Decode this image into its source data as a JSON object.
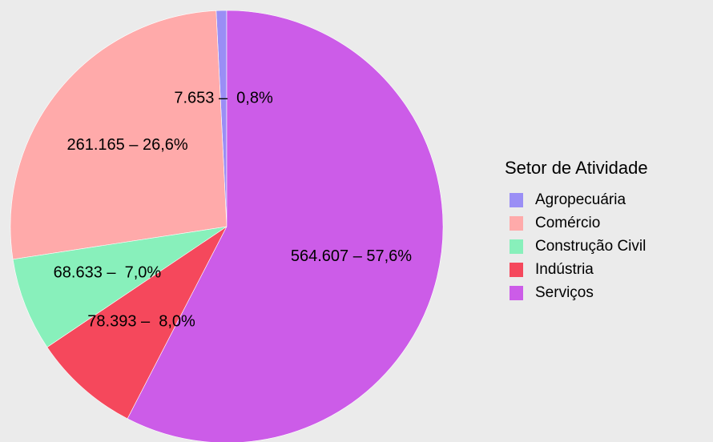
{
  "chart_data": {
    "type": "pie",
    "legend_title": "Setor de Atividade",
    "categories": [
      "Agropecuária",
      "Comércio",
      "Construção Civil",
      "Indústria",
      "Serviços"
    ],
    "values": [
      7653,
      261165,
      68633,
      78393,
      564607
    ],
    "value_labels": [
      "7.653 –  0,8%",
      "261.165 – 26,6%",
      "68.633 –  7,0%",
      "78.393 –  8,0%",
      "564.607 – 57,6%"
    ],
    "colors": [
      "#9a8ef5",
      "#ffaaaa",
      "#88f0bb",
      "#f5485c",
      "#cc5ce8"
    ],
    "legend": "right"
  }
}
